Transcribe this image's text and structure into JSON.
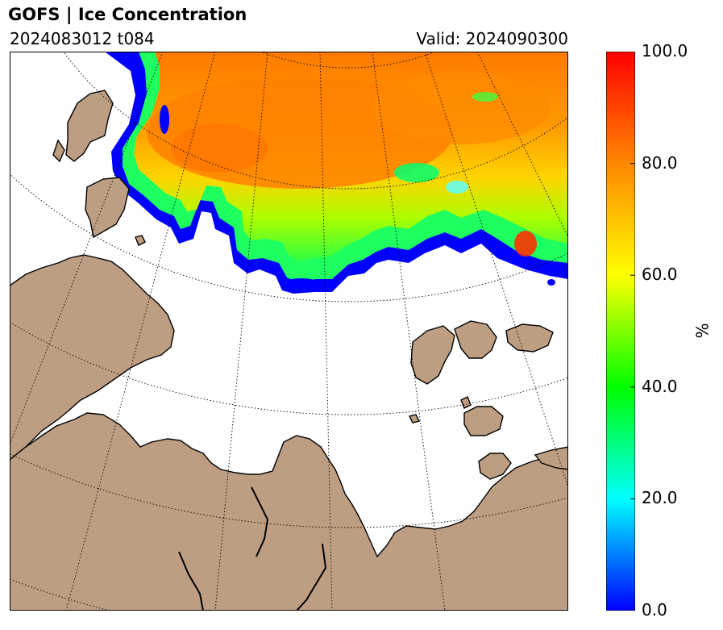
{
  "header": {
    "title": "GOFS  |  Ice Concentration",
    "run": "2024083012 t084",
    "valid": "Valid: 2024090300"
  },
  "colorbar": {
    "unit": "%",
    "ticks": [
      "0.0",
      "20.0",
      "40.0",
      "60.0",
      "80.0",
      "100.0"
    ],
    "stops": [
      "#0000ff",
      "#00ffff",
      "#00ff00",
      "#ffff00",
      "#ff8800",
      "#ff0000"
    ]
  },
  "map": {
    "land_color": "#be9e82",
    "ocean_color": "#ffffff"
  }
}
